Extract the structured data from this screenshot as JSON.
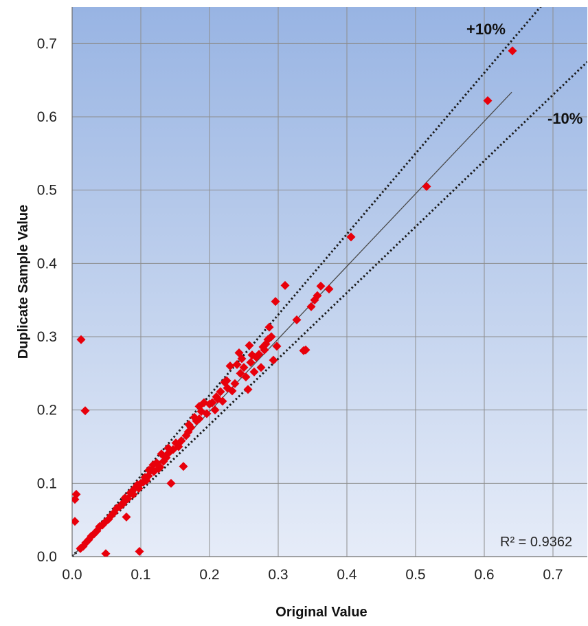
{
  "chart_data": {
    "type": "scatter",
    "title": "",
    "xlabel": "Original Value",
    "ylabel": "Duplicate Sample Value",
    "xlim": [
      0.0,
      0.75
    ],
    "ylim": [
      0.0,
      0.75
    ],
    "x_ticks": [
      "0.0",
      "0.1",
      "0.2",
      "0.3",
      "0.4",
      "0.5",
      "0.6",
      "0.7"
    ],
    "y_ticks": [
      "0.0",
      "0.1",
      "0.2",
      "0.3",
      "0.4",
      "0.5",
      "0.6",
      "0.7"
    ],
    "grid": true,
    "annotations": {
      "upper_band": "+10%",
      "lower_band": "-10%",
      "r_squared": "R² = 0.9362"
    },
    "reference_lines": [
      {
        "slope": 1.1,
        "style": "dotted"
      },
      {
        "slope": 0.9,
        "style": "dotted"
      },
      {
        "slope": 0.99,
        "style": "solid",
        "x_range": [
          0.0,
          0.64
        ]
      }
    ],
    "points": [
      [
        0.641,
        0.69
      ],
      [
        0.605,
        0.622
      ],
      [
        0.516,
        0.505
      ],
      [
        0.406,
        0.436
      ],
      [
        0.374,
        0.365
      ],
      [
        0.362,
        0.369
      ],
      [
        0.357,
        0.356
      ],
      [
        0.353,
        0.35
      ],
      [
        0.348,
        0.341
      ],
      [
        0.34,
        0.282
      ],
      [
        0.337,
        0.281
      ],
      [
        0.327,
        0.323
      ],
      [
        0.31,
        0.37
      ],
      [
        0.296,
        0.348
      ],
      [
        0.298,
        0.287
      ],
      [
        0.293,
        0.268
      ],
      [
        0.29,
        0.3
      ],
      [
        0.287,
        0.313
      ],
      [
        0.285,
        0.296
      ],
      [
        0.282,
        0.29
      ],
      [
        0.278,
        0.286
      ],
      [
        0.275,
        0.258
      ],
      [
        0.272,
        0.276
      ],
      [
        0.268,
        0.272
      ],
      [
        0.265,
        0.252
      ],
      [
        0.26,
        0.265
      ],
      [
        0.258,
        0.288
      ],
      [
        0.256,
        0.228
      ],
      [
        0.253,
        0.245
      ],
      [
        0.25,
        0.258
      ],
      [
        0.247,
        0.27
      ],
      [
        0.243,
        0.278
      ],
      [
        0.24,
        0.262
      ],
      [
        0.237,
        0.236
      ],
      [
        0.233,
        0.226
      ],
      [
        0.23,
        0.26
      ],
      [
        0.226,
        0.23
      ],
      [
        0.222,
        0.238
      ],
      [
        0.219,
        0.212
      ],
      [
        0.216,
        0.225
      ],
      [
        0.212,
        0.215
      ],
      [
        0.208,
        0.2
      ],
      [
        0.204,
        0.21
      ],
      [
        0.2,
        0.208
      ],
      [
        0.196,
        0.195
      ],
      [
        0.192,
        0.21
      ],
      [
        0.188,
        0.198
      ],
      [
        0.185,
        0.205
      ],
      [
        0.181,
        0.185
      ],
      [
        0.178,
        0.19
      ],
      [
        0.173,
        0.176
      ],
      [
        0.169,
        0.17
      ],
      [
        0.166,
        0.165
      ],
      [
        0.162,
        0.123
      ],
      [
        0.159,
        0.158
      ],
      [
        0.155,
        0.15
      ],
      [
        0.151,
        0.155
      ],
      [
        0.147,
        0.146
      ],
      [
        0.144,
        0.1
      ],
      [
        0.14,
        0.141
      ],
      [
        0.137,
        0.135
      ],
      [
        0.133,
        0.13
      ],
      [
        0.13,
        0.14
      ],
      [
        0.126,
        0.12
      ],
      [
        0.123,
        0.128
      ],
      [
        0.119,
        0.116
      ],
      [
        0.115,
        0.118
      ],
      [
        0.111,
        0.11
      ],
      [
        0.108,
        0.104
      ],
      [
        0.104,
        0.102
      ],
      [
        0.1,
        0.1
      ],
      [
        0.097,
        0.093
      ],
      [
        0.098,
        0.007
      ],
      [
        0.093,
        0.095
      ],
      [
        0.089,
        0.085
      ],
      [
        0.085,
        0.087
      ],
      [
        0.081,
        0.079
      ],
      [
        0.079,
        0.054
      ],
      [
        0.077,
        0.08
      ],
      [
        0.073,
        0.071
      ],
      [
        0.069,
        0.068
      ],
      [
        0.065,
        0.066
      ],
      [
        0.061,
        0.06
      ],
      [
        0.057,
        0.056
      ],
      [
        0.053,
        0.051
      ],
      [
        0.049,
        0.004
      ],
      [
        0.048,
        0.047
      ],
      [
        0.044,
        0.043
      ],
      [
        0.04,
        0.041
      ],
      [
        0.036,
        0.035
      ],
      [
        0.032,
        0.031
      ],
      [
        0.028,
        0.028
      ],
      [
        0.024,
        0.023
      ],
      [
        0.02,
        0.019
      ],
      [
        0.016,
        0.014
      ],
      [
        0.012,
        0.011
      ],
      [
        0.013,
        0.296
      ],
      [
        0.019,
        0.199
      ],
      [
        0.006,
        0.085
      ],
      [
        0.004,
        0.078
      ],
      [
        0.004,
        0.048
      ],
      [
        0.21,
        0.218
      ],
      [
        0.225,
        0.24
      ],
      [
        0.245,
        0.25
      ],
      [
        0.262,
        0.275
      ],
      [
        0.28,
        0.282
      ],
      [
        0.17,
        0.18
      ],
      [
        0.185,
        0.188
      ],
      [
        0.14,
        0.148
      ],
      [
        0.128,
        0.122
      ],
      [
        0.118,
        0.125
      ],
      [
        0.112,
        0.118
      ],
      [
        0.106,
        0.108
      ],
      [
        0.095,
        0.098
      ],
      [
        0.087,
        0.089
      ],
      [
        0.075,
        0.074
      ]
    ]
  }
}
